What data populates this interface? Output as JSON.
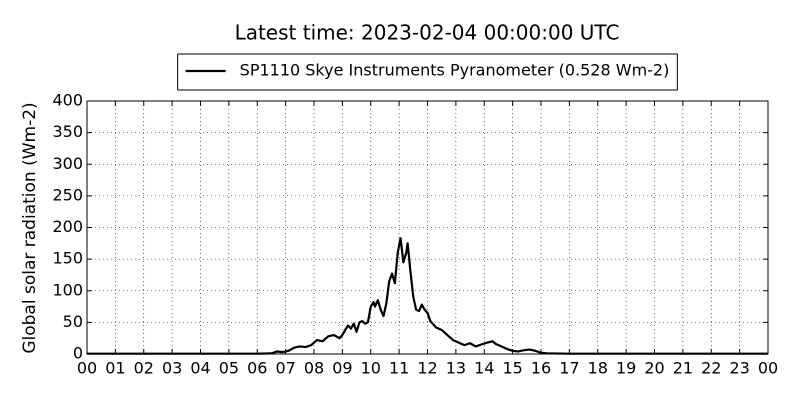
{
  "chart_data": {
    "type": "line",
    "title": "Latest time: 2023-02-04 00:00:00 UTC",
    "y_label": "Global solar radiation (Wm-2)",
    "x": [
      0,
      6,
      6.5,
      6.7,
      6.9,
      7.1,
      7.3,
      7.5,
      7.7,
      7.9,
      8.1,
      8.3,
      8.5,
      8.7,
      8.9,
      9.0,
      9.1,
      9.2,
      9.3,
      9.4,
      9.5,
      9.6,
      9.7,
      9.8,
      9.9,
      10.0,
      10.1,
      10.15,
      10.25,
      10.35,
      10.45,
      10.55,
      10.65,
      10.75,
      10.85,
      10.95,
      11.05,
      11.15,
      11.25,
      11.3,
      11.4,
      11.5,
      11.6,
      11.7,
      11.8,
      11.9,
      12.0,
      12.1,
      12.3,
      12.5,
      12.7,
      12.9,
      13.1,
      13.3,
      13.5,
      13.7,
      13.9,
      14.1,
      14.3,
      14.4,
      14.6,
      14.8,
      15.0,
      15.2,
      15.4,
      15.6,
      15.8,
      16.0,
      16.2,
      17,
      24
    ],
    "series": [
      {
        "name": "SP1110 Skye Instruments Pyranometer (0.528 Wm-2)",
        "color": "#000000",
        "values": [
          0.5,
          0.5,
          1,
          4,
          3,
          5,
          10,
          12,
          11,
          14,
          22,
          20,
          28,
          30,
          25,
          30,
          38,
          45,
          40,
          48,
          35,
          50,
          52,
          48,
          50,
          75,
          82,
          75,
          85,
          70,
          60,
          80,
          115,
          127,
          112,
          160,
          183,
          145,
          160,
          175,
          130,
          90,
          70,
          68,
          78,
          70,
          65,
          52,
          42,
          38,
          30,
          22,
          18,
          14,
          17,
          12,
          15,
          18,
          20,
          16,
          12,
          8,
          5,
          4,
          6,
          7,
          5,
          2,
          1,
          0.5,
          0.5
        ]
      }
    ],
    "xlim": [
      0,
      24
    ],
    "xticks": [
      {
        "value": 0,
        "label": "00"
      },
      {
        "value": 1,
        "label": "01"
      },
      {
        "value": 2,
        "label": "02"
      },
      {
        "value": 3,
        "label": "03"
      },
      {
        "value": 4,
        "label": "04"
      },
      {
        "value": 5,
        "label": "05"
      },
      {
        "value": 6,
        "label": "06"
      },
      {
        "value": 7,
        "label": "07"
      },
      {
        "value": 8,
        "label": "08"
      },
      {
        "value": 9,
        "label": "09"
      },
      {
        "value": 10,
        "label": "10"
      },
      {
        "value": 11,
        "label": "11"
      },
      {
        "value": 12,
        "label": "12"
      },
      {
        "value": 13,
        "label": "13"
      },
      {
        "value": 14,
        "label": "14"
      },
      {
        "value": 15,
        "label": "15"
      },
      {
        "value": 16,
        "label": "16"
      },
      {
        "value": 17,
        "label": "17"
      },
      {
        "value": 18,
        "label": "18"
      },
      {
        "value": 19,
        "label": "19"
      },
      {
        "value": 20,
        "label": "20"
      },
      {
        "value": 21,
        "label": "21"
      },
      {
        "value": 22,
        "label": "22"
      },
      {
        "value": 23,
        "label": "23"
      },
      {
        "value": 24,
        "label": "00"
      }
    ],
    "ylim": [
      0,
      400
    ],
    "yticks": [
      0,
      50,
      100,
      150,
      200,
      250,
      300,
      350,
      400
    ],
    "grid": true,
    "legend": "top"
  }
}
